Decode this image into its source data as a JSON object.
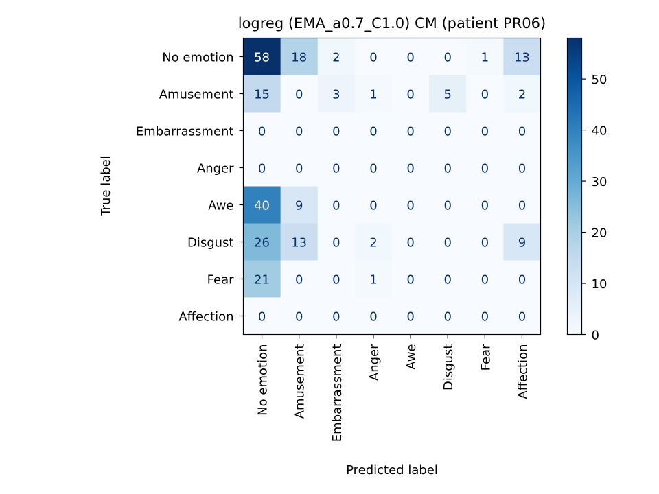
{
  "chart_data": {
    "type": "heatmap",
    "title": "logreg (EMA_a0.7_C1.0) CM (patient PR06)",
    "xlabel": "Predicted label",
    "ylabel": "True label",
    "row_labels": [
      "No emotion",
      "Amusement",
      "Embarrassment",
      "Anger",
      "Awe",
      "Disgust",
      "Fear",
      "Affection"
    ],
    "col_labels": [
      "No emotion",
      "Amusement",
      "Embarrassment",
      "Anger",
      "Awe",
      "Disgust",
      "Fear",
      "Affection"
    ],
    "values": [
      [
        58,
        18,
        2,
        0,
        0,
        0,
        1,
        13
      ],
      [
        15,
        0,
        3,
        1,
        0,
        5,
        0,
        2
      ],
      [
        0,
        0,
        0,
        0,
        0,
        0,
        0,
        0
      ],
      [
        0,
        0,
        0,
        0,
        0,
        0,
        0,
        0
      ],
      [
        40,
        9,
        0,
        0,
        0,
        0,
        0,
        0
      ],
      [
        26,
        13,
        0,
        2,
        0,
        0,
        0,
        9
      ],
      [
        21,
        0,
        0,
        1,
        0,
        0,
        0,
        0
      ],
      [
        0,
        0,
        0,
        0,
        0,
        0,
        0,
        0
      ]
    ],
    "colormap": "Blues",
    "colorbar": {
      "min": 0,
      "max": 58,
      "ticks": [
        0,
        10,
        20,
        30,
        40,
        50
      ]
    },
    "grid": false
  }
}
